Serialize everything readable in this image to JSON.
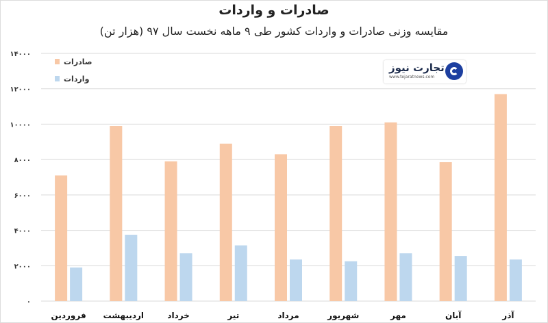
{
  "title": "صادرات و واردات",
  "subtitle": "مقایسه وزنی صادرات و واردات کشور طی ۹ ماهه نخست سال ۹۷ (هزار تن)",
  "logo": {
    "text": "تجارت نیوز",
    "url": "www.tejaratnews.com"
  },
  "chart_data": {
    "type": "bar",
    "categories": [
      "فروردین",
      "اردیبهشت",
      "خرداد",
      "تیر",
      "مرداد",
      "شهریور",
      "مهر",
      "آبان",
      "آذر"
    ],
    "series": [
      {
        "name": "صادرات",
        "color": "#f8c8a6",
        "values": [
          7100,
          9900,
          7900,
          8900,
          8300,
          9900,
          10100,
          7850,
          11700
        ]
      },
      {
        "name": "واردات",
        "color": "#bdd7ee",
        "values": [
          1900,
          3750,
          2700,
          3150,
          2350,
          2250,
          2700,
          2550,
          2350
        ]
      }
    ],
    "ylim": [
      0,
      14000
    ],
    "yticks": [
      "۰",
      "۲۰۰۰",
      "۴۰۰۰",
      "۶۰۰۰",
      "۸۰۰۰",
      "۱۰۰۰۰",
      "۱۲۰۰۰",
      "۱۴۰۰۰"
    ],
    "grid": true,
    "legend": "top-left",
    "xlabel": "",
    "ylabel": ""
  }
}
